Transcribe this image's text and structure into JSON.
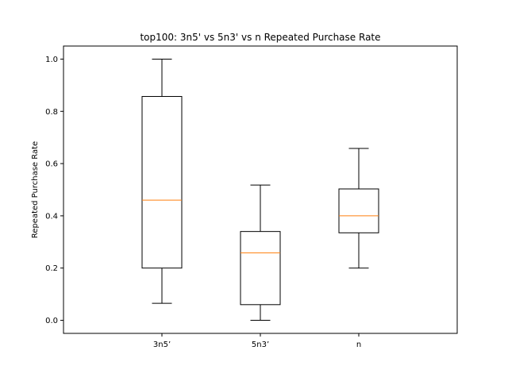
{
  "chart_data": {
    "type": "box",
    "title": "top100: 3n5' vs 5n3' vs n Repeated Purchase Rate",
    "xlabel": "",
    "ylabel": "Repeated Purchase Rate",
    "ylim": [
      -0.05,
      1.05
    ],
    "yticks": [
      "0.0",
      "0.2",
      "0.4",
      "0.6",
      "0.8",
      "1.0"
    ],
    "grid": false,
    "categories": [
      "3n5’",
      "5n3’",
      "n"
    ],
    "boxes": [
      {
        "label": "3n5’",
        "whisker_low": 0.065,
        "q1": 0.2,
        "median": 0.46,
        "q3": 0.857,
        "whisker_high": 1.0
      },
      {
        "label": "5n3’",
        "whisker_low": 0.0,
        "q1": 0.06,
        "median": 0.258,
        "q3": 0.34,
        "whisker_high": 0.518
      },
      {
        "label": "n",
        "whisker_low": 0.2,
        "q1": 0.335,
        "median": 0.4,
        "q3": 0.503,
        "whisker_high": 0.658
      }
    ],
    "colors": {
      "box": "#000000",
      "median": "#ff7f0e"
    }
  }
}
